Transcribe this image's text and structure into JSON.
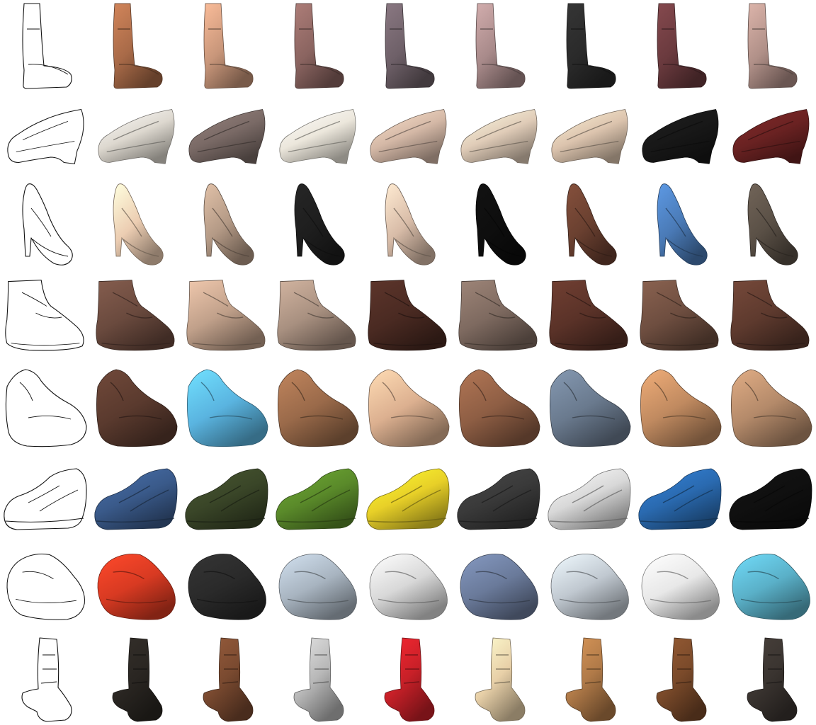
{
  "rows": [
    {
      "kind": "tall-boot",
      "colors": [
        "#a86a48",
        "#c8967a",
        "#8a6460",
        "#6e6068",
        "#a88a8a",
        "#2a2a2a",
        "#6a3a3e",
        "#b09088"
      ]
    },
    {
      "kind": "loafer",
      "colors": [
        "#ddd8cf",
        "#7a6a66",
        "#ece7dc",
        "#d4b8a6",
        "#e0ccb8",
        "#dcc4ae",
        "#181818",
        "#6a2222"
      ]
    },
    {
      "kind": "pump",
      "colors": [
        "#eccdb2",
        "#b49a86",
        "#1e1e1e",
        "#d8bca8",
        "#0e0e0e",
        "#6a4030",
        "#4a7ab6",
        "#5a5046"
      ]
    },
    {
      "kind": "ankle-boot",
      "colors": [
        "#6a4a3e",
        "#c0a08a",
        "#a89080",
        "#4a2a22",
        "#7e6a60",
        "#5a3228",
        "#6e4e40",
        "#5e3a2e"
      ]
    },
    {
      "kind": "sandal",
      "colors": [
        "#5a3a2e",
        "#5ab4e0",
        "#9a6a4a",
        "#dcb090",
        "#8e5e44",
        "#6a7a8e",
        "#c08a60",
        "#b48a6a"
      ]
    },
    {
      "kind": "sneaker",
      "colors": [
        "#3a5a8a",
        "#3a4628",
        "#5a8a2a",
        "#e8d028",
        "#3a3a3a",
        "#d8d8d8",
        "#2a6ab0",
        "#101010"
      ]
    },
    {
      "kind": "running-shoe",
      "colors": [
        "#d83a22",
        "#2a2a2a",
        "#a8b4c0",
        "#d8d8d8",
        "#6a7a9a",
        "#c0c8d0",
        "#e8e8e8",
        "#5ab0c8"
      ]
    },
    {
      "kind": "cowboy-boot",
      "colors": [
        "#2a2622",
        "#7a4a30",
        "#b8b8b8",
        "#c82028",
        "#e8d0a8",
        "#b07a48",
        "#7a4a2a",
        "#3a3430"
      ]
    }
  ]
}
